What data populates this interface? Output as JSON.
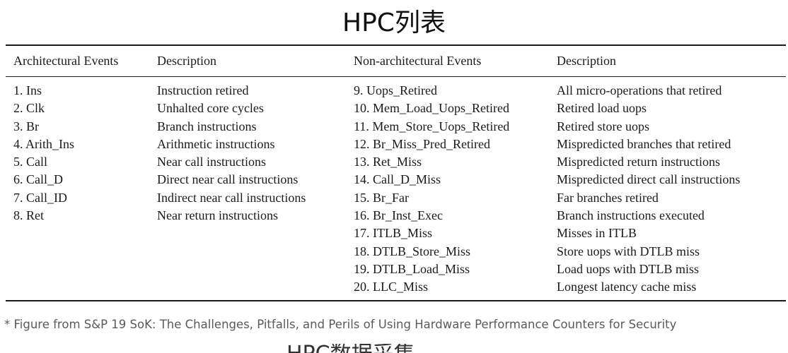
{
  "title": "HPC列表",
  "table": {
    "headers": [
      "Architectural Events",
      "Description",
      "Non-architectural Events",
      "Description"
    ],
    "architectural": [
      {
        "event": "1. Ins",
        "description": "Instruction retired"
      },
      {
        "event": "2. Clk",
        "description": "Unhalted core cycles"
      },
      {
        "event": "3. Br",
        "description": "Branch instructions"
      },
      {
        "event": "4. Arith_Ins",
        "description": "Arithmetic instructions"
      },
      {
        "event": "5. Call",
        "description": "Near call instructions"
      },
      {
        "event": "6. Call_D",
        "description": "Direct near call instructions"
      },
      {
        "event": "7. Call_ID",
        "description": "Indirect near call instructions"
      },
      {
        "event": "8. Ret",
        "description": "Near return instructions"
      }
    ],
    "non_architectural": [
      {
        "event": "9. Uops_Retired",
        "description": "All micro-operations that retired"
      },
      {
        "event": "10. Mem_Load_Uops_Retired",
        "description": "Retired load uops"
      },
      {
        "event": "11. Mem_Store_Uops_Retired",
        "description": "Retired store uops"
      },
      {
        "event": "12. Br_Miss_Pred_Retired",
        "description": "Mispredicted branches that retired"
      },
      {
        "event": "13. Ret_Miss",
        "description": "Mispredicted return instructions"
      },
      {
        "event": "14. Call_D_Miss",
        "description": "Mispredicted direct call instructions"
      },
      {
        "event": "15. Br_Far",
        "description": "Far branches retired"
      },
      {
        "event": "16. Br_Inst_Exec",
        "description": "Branch instructions executed"
      },
      {
        "event": "17. ITLB_Miss",
        "description": "Misses in ITLB"
      },
      {
        "event": "18. DTLB_Store_Miss",
        "description": "Store uops with DTLB miss"
      },
      {
        "event": "19. DTLB_Load_Miss",
        "description": "Load uops with DTLB miss"
      },
      {
        "event": "20. LLC_Miss",
        "description": "Longest latency cache miss"
      }
    ]
  },
  "footnote": "* Figure from S&P 19 SoK: The Challenges, Pitfalls, and Perils of Using Hardware Performance Counters for Security",
  "next_heading_partial": "HPC数据采集"
}
